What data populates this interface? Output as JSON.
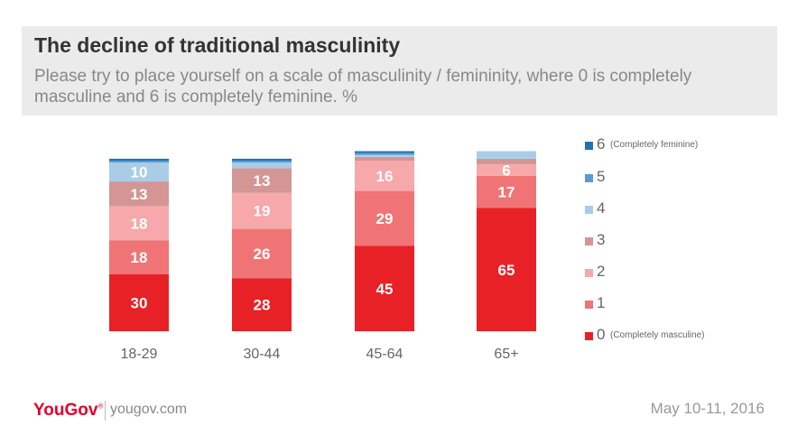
{
  "header": {
    "title": "The decline of traditional masculinity",
    "subtitle": "Please try to place yourself on a scale of masculinity / femininity, where 0 is completely masculine and 6 is completely feminine. %"
  },
  "chart_data": {
    "type": "bar",
    "stacked": true,
    "categories": [
      "18-29",
      "30-44",
      "45-64",
      "65+"
    ],
    "series": [
      {
        "name": "0",
        "values": [
          30,
          28,
          45,
          65
        ],
        "color": "#e82127"
      },
      {
        "name": "1",
        "values": [
          18,
          26,
          29,
          17
        ],
        "color": "#f07476"
      },
      {
        "name": "2",
        "values": [
          18,
          19,
          16,
          6
        ],
        "color": "#f6a8aa"
      },
      {
        "name": "3",
        "values": [
          13,
          13,
          2,
          3
        ],
        "color": "#d49595"
      },
      {
        "name": "4",
        "values": [
          10,
          3,
          1,
          4
        ],
        "color": "#a9cde7"
      },
      {
        "name": "5",
        "values": [
          1,
          1,
          1,
          0
        ],
        "color": "#5b9bd1"
      },
      {
        "name": "6",
        "values": [
          1,
          1,
          1,
          0
        ],
        "color": "#2171b5"
      }
    ],
    "data_labels": [
      [
        "30",
        "28",
        "45",
        "65"
      ],
      [
        "18",
        "26",
        "29",
        "17"
      ],
      [
        "18",
        "19",
        "16",
        "6"
      ],
      [
        "13",
        "13",
        "",
        ""
      ],
      [
        "10",
        "",
        "",
        ""
      ],
      [
        "",
        "",
        "",
        ""
      ],
      [
        "",
        "",
        "",
        ""
      ]
    ],
    "ylim": [
      0,
      105
    ],
    "legend_position": "right"
  },
  "legend": {
    "items": [
      {
        "num": "6",
        "note": "(Completely feminine)",
        "color": "#2171b5"
      },
      {
        "num": "5",
        "note": "",
        "color": "#5b9bd1"
      },
      {
        "num": "4",
        "note": "",
        "color": "#a9cde7"
      },
      {
        "num": "3",
        "note": "",
        "color": "#d49595"
      },
      {
        "num": "2",
        "note": "",
        "color": "#f6a8aa"
      },
      {
        "num": "1",
        "note": "",
        "color": "#f07476"
      },
      {
        "num": "0",
        "note": "(Completely masculine)",
        "color": "#e82127"
      }
    ]
  },
  "footer": {
    "logo": "YouGov",
    "logo_mark": "®",
    "site": "yougov.com",
    "date": "May 10-11, 2016"
  }
}
